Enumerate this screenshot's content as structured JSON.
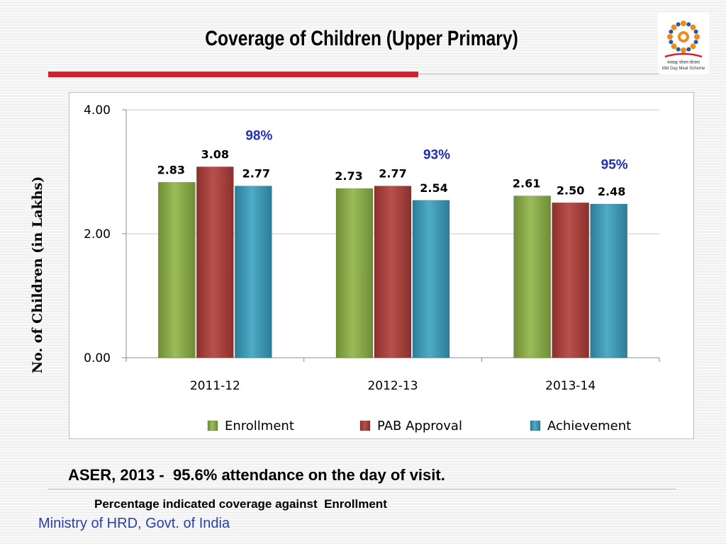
{
  "slide": {
    "title": "Coverage of Children  (Upper Primary)",
    "logo_text": [
      "मध्याह्न भोजन योजना",
      "Mid Day Meal Scheme"
    ],
    "footnote_main": "ASER, 2013 -  95.6% attendance on the day of visit.",
    "footnote_sub": "Percentage indicated coverage against  Enrollment",
    "footer": "Ministry of HRD, Govt. of India"
  },
  "chart_data": {
    "type": "bar",
    "title": "",
    "ylabel": "No.  of Children (in Lakhs)",
    "xlabel": "",
    "ylim": [
      0,
      4
    ],
    "yticks": [
      "0.00",
      "2.00",
      "4.00"
    ],
    "grid": true,
    "legend_position": "bottom",
    "categories": [
      "2011-12",
      "2012-13",
      "2013-14"
    ],
    "series": [
      {
        "name": "Enrollment",
        "values": [
          2.83,
          2.73,
          2.61
        ],
        "labels": [
          "2.83",
          "2.73",
          "2.61"
        ],
        "color": "#8aaa46"
      },
      {
        "name": "PAB Approval",
        "values": [
          3.08,
          2.77,
          2.5
        ],
        "labels": [
          "3.08",
          "2.77",
          "2.50"
        ],
        "color": "#a8403c"
      },
      {
        "name": "Achievement",
        "values": [
          2.77,
          2.54,
          2.48
        ],
        "labels": [
          "2.77",
          "2.54",
          "2.48"
        ],
        "color": "#3d97b3"
      }
    ],
    "annotations": [
      "98%",
      "93%",
      "95%"
    ],
    "annotation_color": "#1f2fb4"
  }
}
